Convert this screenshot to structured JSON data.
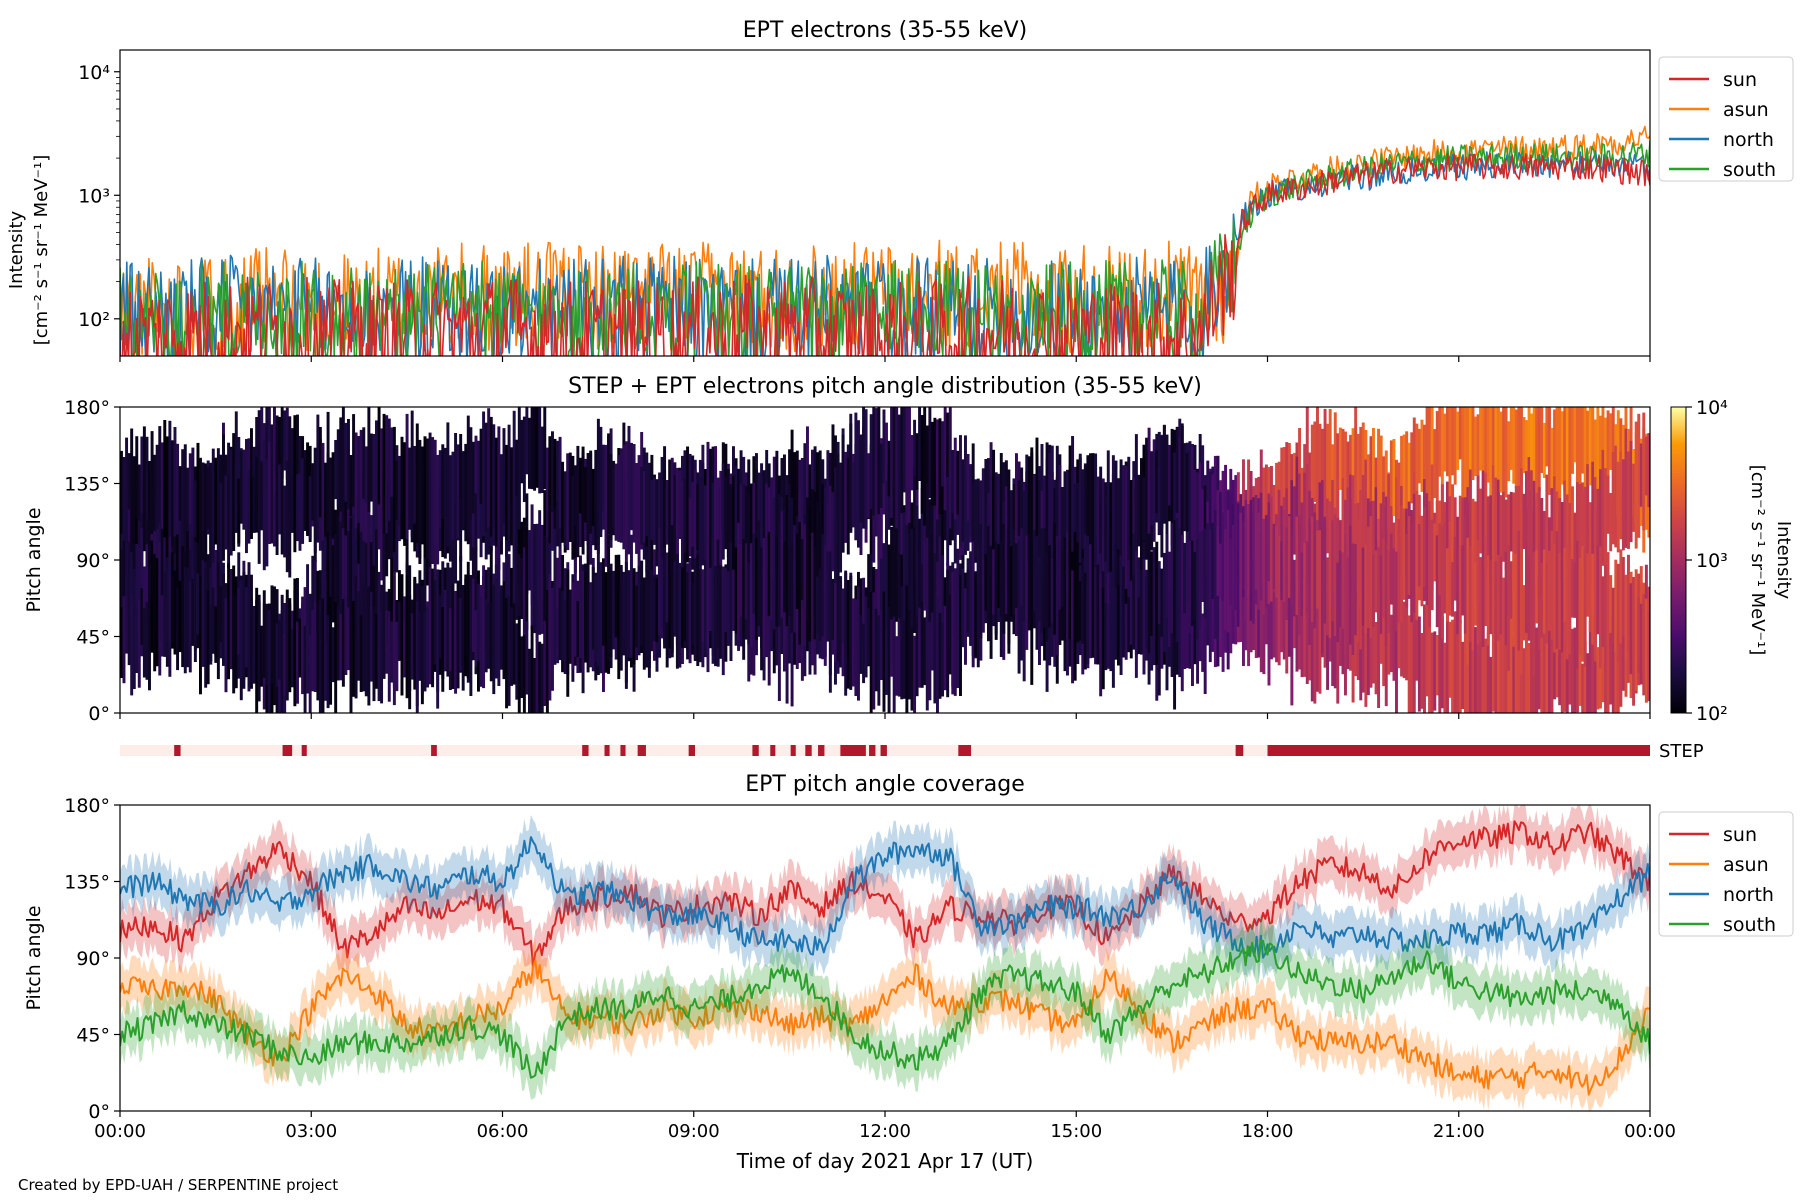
{
  "credit": "Created by EPD-UAH / SERPENTINE project",
  "x_axis": {
    "label": "Time of day 2021 Apr 17 (UT)",
    "range_hours": [
      0,
      24
    ],
    "ticks": [
      0,
      3,
      6,
      9,
      12,
      15,
      18,
      21,
      24
    ],
    "tick_labels": [
      "00:00",
      "03:00",
      "06:00",
      "09:00",
      "12:00",
      "15:00",
      "18:00",
      "21:00",
      "00:00"
    ]
  },
  "colors": {
    "sun": "#d62728",
    "asun": "#ff7f0e",
    "north": "#1f77b4",
    "south": "#2ca02c",
    "step_bar_on": "#b2182b",
    "step_bar_off": "#fdeee9"
  },
  "chart_data": [
    {
      "type": "line",
      "title": "EPT electrons (35-55 keV)",
      "ylabel_line1": "Intensity",
      "ylabel_line2": "[cm⁻² s⁻¹ sr⁻¹ MeV⁻¹]",
      "yscale": "log",
      "ylim": [
        50,
        15000
      ],
      "yticks": [
        100,
        1000,
        10000
      ],
      "ytick_labels": [
        "10²",
        "10³",
        "10⁴"
      ],
      "legend": "outside-right",
      "series": [
        {
          "name": "asun",
          "color": "#ff7f0e",
          "x": [
            0,
            1,
            2,
            3,
            4,
            5,
            6,
            7,
            8,
            9,
            10,
            11,
            12,
            13,
            14,
            15,
            16,
            17,
            17.5,
            17.6,
            18,
            19,
            20,
            21,
            22,
            23,
            24
          ],
          "values": [
            130,
            140,
            150,
            145,
            150,
            160,
            170,
            165,
            170,
            165,
            170,
            165,
            170,
            175,
            165,
            160,
            165,
            170,
            200,
            700,
            1200,
            1600,
            2000,
            2300,
            2400,
            2500,
            3000
          ]
        },
        {
          "name": "north",
          "color": "#1f77b4",
          "x": [
            0,
            1,
            2,
            3,
            4,
            5,
            6,
            7,
            8,
            9,
            10,
            11,
            12,
            13,
            14,
            15,
            16,
            17,
            17.5,
            17.6,
            18,
            19,
            20,
            21,
            22,
            23,
            24
          ],
          "values": [
            120,
            125,
            130,
            125,
            120,
            130,
            125,
            120,
            130,
            125,
            120,
            130,
            125,
            120,
            125,
            120,
            125,
            130,
            400,
            700,
            1000,
            1300,
            1500,
            1700,
            1800,
            1800,
            1700
          ]
        },
        {
          "name": "south",
          "color": "#2ca02c",
          "x": [
            0,
            1,
            2,
            3,
            4,
            5,
            6,
            7,
            8,
            9,
            10,
            11,
            12,
            13,
            14,
            15,
            16,
            17,
            17.5,
            17.6,
            18,
            19,
            20,
            21,
            22,
            23,
            24
          ],
          "values": [
            110,
            115,
            120,
            115,
            110,
            120,
            115,
            110,
            115,
            120,
            115,
            110,
            120,
            115,
            110,
            115,
            120,
            115,
            300,
            500,
            1000,
            1400,
            1800,
            2000,
            2100,
            2000,
            2200
          ]
        },
        {
          "name": "sun",
          "color": "#d62728",
          "x": [
            0,
            1,
            2,
            3,
            4,
            5,
            6,
            7,
            8,
            9,
            10,
            11,
            12,
            13,
            14,
            15,
            16,
            17,
            17.5,
            17.6,
            18,
            19,
            20,
            21,
            22,
            23,
            24
          ],
          "values": [
            80,
            85,
            90,
            85,
            80,
            85,
            90,
            85,
            80,
            85,
            90,
            85,
            80,
            85,
            90,
            85,
            80,
            85,
            300,
            600,
            1000,
            1300,
            1600,
            1700,
            1700,
            1700,
            1500
          ]
        }
      ]
    },
    {
      "type": "heatmap",
      "title": "STEP + EPT electrons pitch angle distribution (35-55 keV)",
      "ylabel": "Pitch angle",
      "ylim": [
        0,
        180
      ],
      "yticks": [
        0,
        45,
        90,
        135,
        180
      ],
      "ytick_labels": [
        "0°",
        "45°",
        "90°",
        "135°",
        "180°"
      ],
      "colorbar": {
        "scale": "log",
        "range": [
          100,
          10000
        ],
        "ticks": [
          100,
          1000,
          10000
        ],
        "tick_labels": [
          "10²",
          "10³",
          "10⁴"
        ],
        "label_line1": "Intensity",
        "label_line2": "[cm⁻² s⁻¹ sr⁻¹ MeV⁻¹]",
        "colormap": "inferno"
      },
      "intensity_profile": {
        "x": [
          0,
          6,
          12,
          16,
          17,
          17.5,
          18,
          19,
          20,
          21,
          24
        ],
        "values": [
          150,
          160,
          170,
          160,
          200,
          400,
          800,
          1100,
          1300,
          1500,
          1600
        ]
      }
    },
    {
      "type": "bar",
      "name": "STEP",
      "label": "STEP",
      "on_intervals": [
        [
          0.85,
          0.95
        ],
        [
          2.55,
          2.7
        ],
        [
          2.85,
          2.93
        ],
        [
          4.88,
          4.97
        ],
        [
          7.25,
          7.35
        ],
        [
          7.6,
          7.68
        ],
        [
          7.85,
          7.93
        ],
        [
          8.12,
          8.25
        ],
        [
          8.92,
          9.02
        ],
        [
          9.92,
          10.02
        ],
        [
          10.2,
          10.28
        ],
        [
          10.52,
          10.6
        ],
        [
          10.75,
          10.85
        ],
        [
          10.95,
          11.05
        ],
        [
          11.3,
          11.7
        ],
        [
          11.75,
          11.85
        ],
        [
          11.93,
          12.03
        ],
        [
          13.15,
          13.35
        ],
        [
          17.5,
          17.62
        ],
        [
          18,
          24
        ]
      ]
    },
    {
      "type": "line",
      "title": "EPT pitch angle coverage",
      "ylabel": "Pitch angle",
      "ylim": [
        0,
        180
      ],
      "yticks": [
        0,
        45,
        90,
        135,
        180
      ],
      "ytick_labels": [
        "0°",
        "45°",
        "90°",
        "135°",
        "180°"
      ],
      "legend": "outside-right",
      "band_halfwidth_deg": 13,
      "series": [
        {
          "name": "sun",
          "color": "#d62728",
          "x": [
            0,
            0.5,
            1,
            1.5,
            2,
            2.5,
            3,
            3.5,
            4,
            4.5,
            5,
            5.5,
            6,
            6.5,
            7,
            7.5,
            8,
            8.5,
            9,
            9.5,
            10,
            10.5,
            11,
            11.5,
            12,
            12.5,
            13,
            13.5,
            14,
            14.5,
            15,
            15.5,
            16,
            16.5,
            17,
            17.5,
            18,
            18.5,
            19,
            19.5,
            20,
            20.5,
            21,
            21.5,
            22,
            22.5,
            23,
            23.5,
            24
          ],
          "values": [
            105,
            110,
            100,
            125,
            140,
            155,
            135,
            95,
            105,
            120,
            115,
            125,
            120,
            90,
            120,
            125,
            130,
            115,
            120,
            125,
            115,
            130,
            120,
            135,
            125,
            100,
            120,
            115,
            110,
            120,
            120,
            100,
            120,
            140,
            125,
            110,
            115,
            135,
            145,
            140,
            130,
            150,
            160,
            160,
            165,
            155,
            165,
            150,
            135
          ]
        },
        {
          "name": "asun",
          "color": "#ff7f0e",
          "x": [
            0,
            0.5,
            1,
            1.5,
            2,
            2.5,
            3,
            3.5,
            4,
            4.5,
            5,
            5.5,
            6,
            6.5,
            7,
            7.5,
            8,
            8.5,
            9,
            9.5,
            10,
            10.5,
            11,
            11.5,
            12,
            12.5,
            13,
            13.5,
            14,
            14.5,
            15,
            15.5,
            16,
            16.5,
            17,
            17.5,
            18,
            18.5,
            19,
            19.5,
            20,
            20.5,
            21,
            21.5,
            22,
            22.5,
            23,
            23.5,
            24
          ],
          "values": [
            75,
            70,
            75,
            65,
            45,
            30,
            60,
            80,
            70,
            50,
            45,
            55,
            60,
            85,
            55,
            55,
            50,
            60,
            55,
            60,
            60,
            50,
            55,
            50,
            65,
            80,
            60,
            65,
            65,
            55,
            50,
            80,
            60,
            40,
            50,
            60,
            60,
            45,
            40,
            40,
            40,
            30,
            20,
            20,
            20,
            25,
            15,
            30,
            60
          ]
        },
        {
          "name": "north",
          "color": "#1f77b4",
          "x": [
            0,
            0.5,
            1,
            1.5,
            2,
            2.5,
            3,
            3.5,
            4,
            4.5,
            5,
            5.5,
            6,
            6.5,
            7,
            7.5,
            8,
            8.5,
            9,
            9.5,
            10,
            10.5,
            11,
            11.5,
            12,
            12.5,
            13,
            13.5,
            14,
            14.5,
            15,
            15.5,
            16,
            16.5,
            17,
            17.5,
            18,
            18.5,
            19,
            19.5,
            20,
            20.5,
            21,
            21.5,
            22,
            22.5,
            23,
            23.5,
            24
          ],
          "values": [
            130,
            135,
            125,
            120,
            130,
            120,
            130,
            140,
            145,
            135,
            130,
            140,
            135,
            160,
            125,
            130,
            125,
            115,
            115,
            110,
            100,
            100,
            95,
            135,
            150,
            155,
            150,
            110,
            110,
            120,
            120,
            115,
            120,
            140,
            110,
            100,
            95,
            110,
            100,
            105,
            100,
            100,
            105,
            105,
            110,
            100,
            105,
            125,
            140
          ]
        },
        {
          "name": "south",
          "color": "#2ca02c",
          "x": [
            0,
            0.5,
            1,
            1.5,
            2,
            2.5,
            3,
            3.5,
            4,
            4.5,
            5,
            5.5,
            6,
            6.5,
            7,
            7.5,
            8,
            8.5,
            9,
            9.5,
            10,
            10.5,
            11,
            11.5,
            12,
            12.5,
            13,
            13.5,
            14,
            14.5,
            15,
            15.5,
            16,
            16.5,
            17,
            17.5,
            18,
            18.5,
            19,
            19.5,
            20,
            20.5,
            21,
            21.5,
            22,
            22.5,
            23,
            23.5,
            24
          ],
          "values": [
            45,
            50,
            60,
            50,
            45,
            35,
            30,
            40,
            40,
            40,
            45,
            50,
            45,
            20,
            55,
            60,
            60,
            70,
            60,
            65,
            75,
            80,
            70,
            45,
            35,
            30,
            40,
            70,
            80,
            75,
            70,
            45,
            60,
            75,
            80,
            90,
            95,
            80,
            75,
            70,
            80,
            90,
            75,
            70,
            65,
            70,
            70,
            65,
            40
          ]
        }
      ]
    }
  ]
}
